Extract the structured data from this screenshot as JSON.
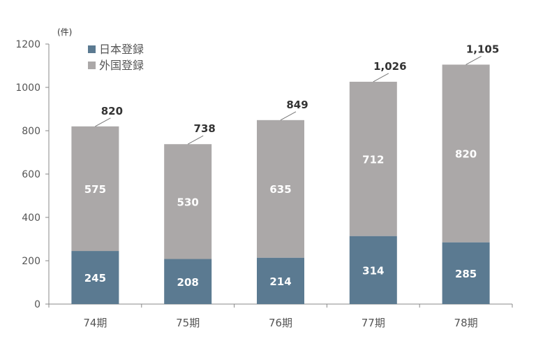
{
  "chart_data": {
    "type": "bar",
    "stacked": true,
    "categories": [
      "74期",
      "75期",
      "76期",
      "77期",
      "78期"
    ],
    "series": [
      {
        "name": "日本登録",
        "color": "#5b7a91",
        "values": [
          245,
          208,
          214,
          314,
          285
        ]
      },
      {
        "name": "外国登録",
        "color": "#aba8a8",
        "values": [
          575,
          530,
          635,
          712,
          820
        ]
      }
    ],
    "totals": [
      "820",
      "738",
      "849",
      "1,026",
      "1,105"
    ],
    "ylim": [
      0,
      1200
    ],
    "yticks": [
      0,
      200,
      400,
      600,
      800,
      1000,
      1200
    ],
    "unit_label": "(件)",
    "legend_position": "top-left",
    "grid": false
  }
}
